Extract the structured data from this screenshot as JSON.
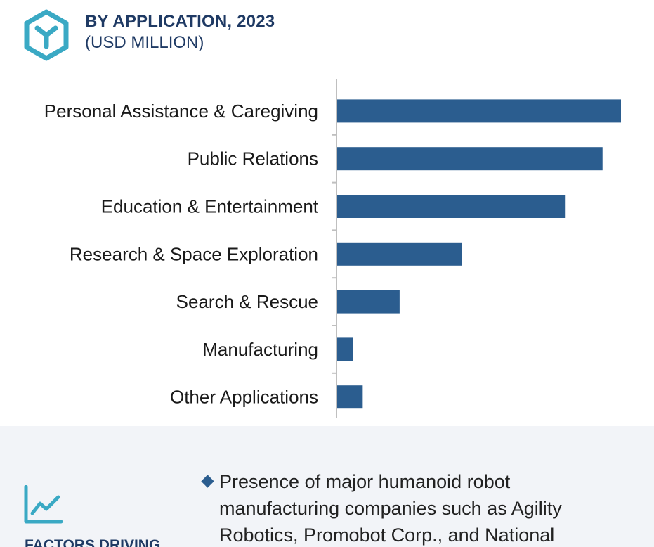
{
  "header": {
    "title": "BY APPLICATION, 2023",
    "subtitle": "(USD MILLION)"
  },
  "colors": {
    "bar": "#2b5d8f",
    "accent": "#3aa9c4",
    "title": "#1f3a64",
    "panel": "#f2f4f8"
  },
  "chart_data": {
    "type": "bar",
    "orientation": "horizontal",
    "categories": [
      "Personal Assistance & Caregiving",
      "Public Relations",
      "Education & Entertainment",
      "Research & Space Exploration",
      "Search & Rescue",
      "Manufacturing",
      "Other Applications"
    ],
    "values": [
      100,
      93.5,
      80.5,
      44,
      22,
      5.5,
      9
    ],
    "value_axis_labels": false,
    "grid": false
  },
  "factors": {
    "heading": "FACTORS DRIVING",
    "icon": "trend-line-icon",
    "bullet": "Presence of major humanoid robot manufacturing companies such as Agility Robotics, Promobot Corp., and National"
  }
}
